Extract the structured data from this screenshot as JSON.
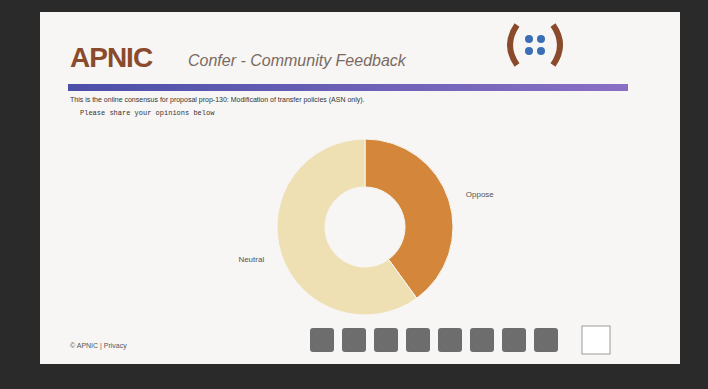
{
  "header": {
    "logo": "APNIC",
    "title": "Confer - Community Feedback"
  },
  "intro": "This is the online consensus for proposal prop-130: Modification of transfer policies (ASN only).",
  "prompt": "Please share your opinions below",
  "footer": "© APNIC | Privacy",
  "chart_data": {
    "type": "pie",
    "categories": [
      "Oppose",
      "Neutral"
    ],
    "values": [
      40,
      60
    ],
    "colors": [
      "#d4873a",
      "#efe0b4"
    ]
  }
}
